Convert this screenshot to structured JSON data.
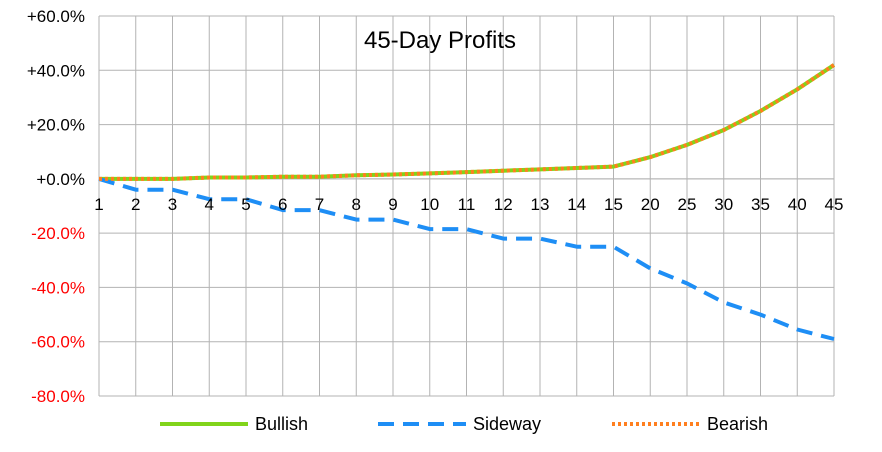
{
  "chart_data": {
    "type": "line",
    "title": "45-Day Profits",
    "categories": [
      "1",
      "2",
      "3",
      "4",
      "5",
      "6",
      "7",
      "8",
      "9",
      "10",
      "11",
      "12",
      "13",
      "14",
      "15",
      "20",
      "25",
      "30",
      "35",
      "40",
      "45"
    ],
    "ylim": [
      -80,
      60
    ],
    "yticks": [
      60,
      40,
      20,
      0,
      -20,
      -40,
      -60,
      -80
    ],
    "ytick_labels": [
      "+60.0%",
      "+40.0%",
      "+20.0%",
      "+0.0%",
      "-20.0%",
      "-40.0%",
      "-60.0%",
      "-80.0%"
    ],
    "grid": true,
    "legend_position": "bottom",
    "series": [
      {
        "name": "Bullish",
        "color": "#81d41a",
        "style": "solid",
        "values": [
          0,
          0,
          0,
          0.5,
          0.5,
          0.8,
          0.8,
          1.3,
          1.6,
          2.0,
          2.5,
          3.0,
          3.5,
          4.0,
          4.5,
          8,
          12.5,
          18,
          25,
          33,
          42
        ]
      },
      {
        "name": "Sideway",
        "color": "#1e8ef5",
        "style": "dashed",
        "values": [
          0,
          -4,
          -4,
          -7.5,
          -7.5,
          -11.5,
          -11.5,
          -15,
          -15,
          -18.5,
          -18.5,
          -22,
          -22,
          -25,
          -25,
          -33,
          -38.5,
          -45.5,
          -50,
          -55.5,
          -59
        ]
      },
      {
        "name": "Bearish",
        "color": "#ff7f1f",
        "style": "dotted",
        "values": [
          0,
          0,
          0,
          0.5,
          0.5,
          0.8,
          0.8,
          1.3,
          1.6,
          2.0,
          2.5,
          3.0,
          3.5,
          4.0,
          4.5,
          8,
          12.5,
          18,
          25,
          33,
          42
        ]
      }
    ],
    "negative_label_color": "#ff0000",
    "positive_label_color": "#000000"
  }
}
